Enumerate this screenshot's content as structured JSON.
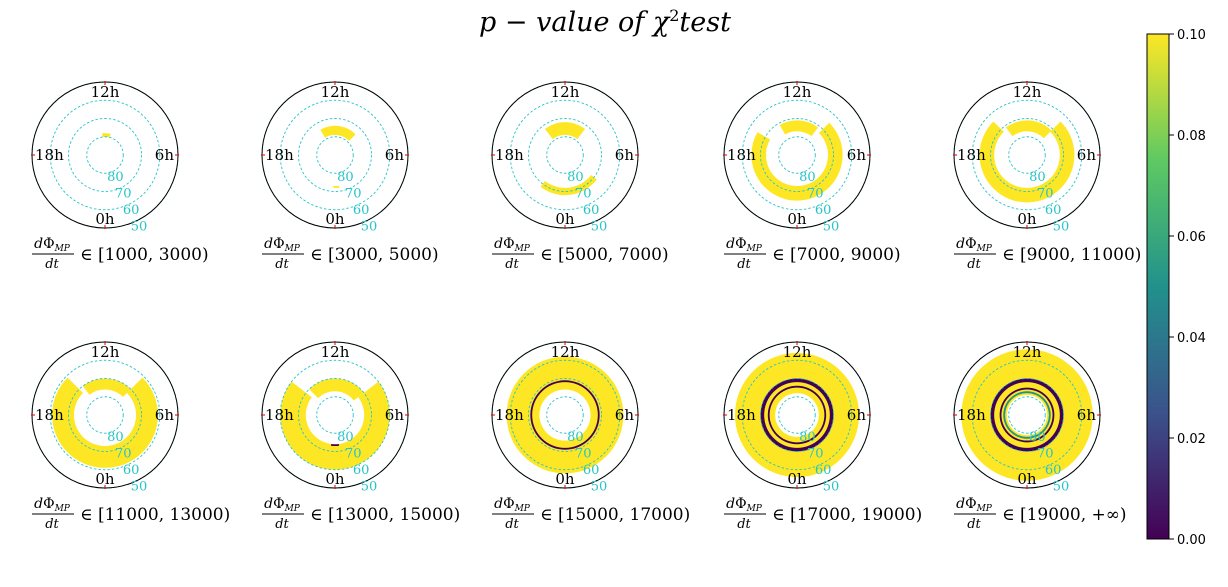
{
  "title": {
    "main": "p − value of χ",
    "sup": "2",
    "tail": "test"
  },
  "chart_data": {
    "type": "heatmap",
    "projection": "polar",
    "colormap": "viridis",
    "colors": {
      "low": "#440154",
      "mid": "#21918c",
      "high": "#fde725",
      "ring": "#27c4c8"
    },
    "clock_labels": [
      "12h",
      "6h",
      "0h",
      "18h"
    ],
    "latitude_labels": [
      "80",
      "70",
      "60",
      "50"
    ],
    "latitude_rings": [
      80,
      70,
      60,
      50
    ],
    "colorbar": {
      "range": [
        0.0,
        0.1
      ],
      "ticks": [
        "0.00",
        "0.02",
        "0.04",
        "0.06",
        "0.08",
        "0.10"
      ]
    },
    "panels": [
      {
        "label_pre": "dΦ",
        "label_sub": "MP",
        "label_den": "dt",
        "label_range": "∈ [1000, 3000)",
        "bands": [
          {
            "lat_lo": 78,
            "lat_hi": 80,
            "mlt_from": 11.5,
            "mlt_to": 13,
            "p": 0.1
          }
        ]
      },
      {
        "label_pre": "dΦ",
        "label_sub": "MP",
        "label_den": "dt",
        "label_range": "∈ [3000, 5000)",
        "bands": [
          {
            "lat_lo": 74,
            "lat_hi": 79,
            "mlt_from": 10,
            "mlt_to": 15,
            "p": 0.1
          },
          {
            "lat_lo": 72,
            "lat_hi": 73,
            "mlt_from": 23.5,
            "mlt_to": 24.2,
            "p": 0.1
          }
        ]
      },
      {
        "label_pre": "dΦ",
        "label_sub": "MP",
        "label_den": "dt",
        "label_range": "∈ [5000, 7000)",
        "bands": [
          {
            "lat_lo": 72,
            "lat_hi": 79,
            "mlt_from": 9.5,
            "mlt_to": 14.5,
            "p": 0.1
          },
          {
            "lat_lo": 68,
            "lat_hi": 72,
            "mlt_from": 20.5,
            "mlt_to": 26.5,
            "p": 0.1
          }
        ]
      },
      {
        "label_pre": "dΦ",
        "label_sub": "MP",
        "label_den": "dt",
        "label_range": "∈ [7000, 9000)",
        "bands": [
          {
            "lat_lo": 71,
            "lat_hi": 77,
            "mlt_from": 10,
            "mlt_to": 14.5,
            "p": 0.1
          },
          {
            "lat_lo": 65,
            "lat_hi": 73,
            "mlt_from": 15,
            "mlt_to": 32,
            "p": 0.1
          }
        ]
      },
      {
        "label_pre": "dΦ",
        "label_sub": "MP",
        "label_den": "dt",
        "label_range": "∈ [9000, 11000)",
        "bands": [
          {
            "lat_lo": 71,
            "lat_hi": 77,
            "mlt_from": 9.5,
            "mlt_to": 15,
            "p": 0.1
          },
          {
            "lat_lo": 64,
            "lat_hi": 72,
            "mlt_from": 15,
            "mlt_to": 33,
            "p": 0.1
          }
        ]
      },
      {
        "label_pre": "dΦ",
        "label_sub": "MP",
        "label_den": "dt",
        "label_range": "∈ [11000, 13000)",
        "bands": [
          {
            "lat_lo": 70,
            "lat_hi": 76,
            "mlt_from": 9.5,
            "mlt_to": 15,
            "p": 0.1
          },
          {
            "lat_lo": 61,
            "lat_hi": 73,
            "mlt_from": 15,
            "mlt_to": 33,
            "p": 0.1
          }
        ]
      },
      {
        "label_pre": "dΦ",
        "label_sub": "MP",
        "label_den": "dt",
        "label_range": "∈ [13000, 15000)",
        "bands": [
          {
            "lat_lo": 70,
            "lat_hi": 77,
            "mlt_from": 9,
            "mlt_to": 15.5,
            "p": 0.1
          },
          {
            "lat_lo": 60,
            "lat_hi": 74,
            "mlt_from": 15.5,
            "mlt_to": 32.5,
            "p": 0.1
          },
          {
            "lat_lo": 73,
            "lat_hi": 74,
            "mlt_from": 23.5,
            "mlt_to": 24.5,
            "p": 0.0
          }
        ]
      },
      {
        "label_pre": "dΦ",
        "label_sub": "MP",
        "label_den": "dt",
        "label_range": "∈ [15000, 17000)",
        "bands": [
          {
            "lat_lo": 58,
            "lat_hi": 76,
            "mlt_from": 0,
            "mlt_to": 24,
            "p": 0.1
          },
          {
            "lat_lo": 71,
            "lat_hi": 72,
            "mlt_from": 0,
            "mlt_to": 24,
            "p": 0.0
          }
        ]
      },
      {
        "label_pre": "dΦ",
        "label_sub": "MP",
        "label_den": "dt",
        "label_range": "∈ [17000, 19000)",
        "bands": [
          {
            "lat_lo": 56,
            "lat_hi": 78,
            "mlt_from": 0,
            "mlt_to": 24,
            "p": 0.1
          },
          {
            "lat_lo": 70,
            "lat_hi": 72,
            "mlt_from": 0,
            "mlt_to": 24,
            "p": 0.0
          },
          {
            "lat_lo": 74,
            "lat_hi": 75,
            "mlt_from": 0,
            "mlt_to": 24,
            "p": 0.0
          }
        ]
      },
      {
        "label_pre": "dΦ",
        "label_sub": "MP",
        "label_den": "dt",
        "label_range": "∈ [19000, +∞)",
        "bands": [
          {
            "lat_lo": 54,
            "lat_hi": 79,
            "mlt_from": 0,
            "mlt_to": 24,
            "p": 0.1
          },
          {
            "lat_lo": 70,
            "lat_hi": 72,
            "mlt_from": 0,
            "mlt_to": 24,
            "p": 0.0
          },
          {
            "lat_lo": 75,
            "lat_hi": 76,
            "mlt_from": 0,
            "mlt_to": 24,
            "p": 0.0
          },
          {
            "lat_lo": 77,
            "lat_hi": 78,
            "mlt_from": 0,
            "mlt_to": 24,
            "p": 0.05
          }
        ]
      }
    ]
  }
}
